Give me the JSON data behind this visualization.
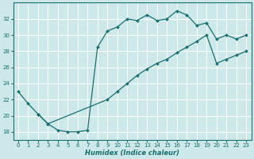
{
  "xlabel": "Humidex (Indice chaleur)",
  "bg_color": "#cce8e8",
  "grid_color": "#ffffff",
  "line_color": "#1a6e6e",
  "xlim": [
    -0.5,
    23.5
  ],
  "ylim": [
    17.0,
    34.0
  ],
  "xticks": [
    0,
    1,
    2,
    3,
    4,
    5,
    6,
    7,
    8,
    9,
    10,
    11,
    12,
    13,
    14,
    15,
    16,
    17,
    18,
    19,
    20,
    21,
    22,
    23
  ],
  "yticks": [
    18,
    20,
    22,
    24,
    26,
    28,
    30,
    32
  ],
  "line1_x": [
    0,
    1,
    2,
    3,
    4,
    5,
    6,
    7,
    8,
    9,
    10,
    11,
    12,
    13,
    14,
    15,
    16,
    17,
    18,
    19,
    20,
    21,
    22,
    23
  ],
  "line1_y": [
    23.0,
    21.5,
    20.2,
    19.0,
    18.2,
    18.0,
    18.0,
    18.2,
    28.5,
    30.5,
    31.0,
    32.0,
    31.8,
    32.5,
    31.8,
    32.0,
    33.0,
    32.5,
    31.2,
    31.5,
    29.5,
    30.0,
    29.5,
    30.0
  ],
  "line2_x": [
    2,
    3,
    9,
    10,
    11,
    12,
    13,
    14,
    15,
    16,
    17,
    18,
    19,
    20,
    21,
    22,
    23
  ],
  "line2_y": [
    20.2,
    19.0,
    22.0,
    23.0,
    24.0,
    25.0,
    25.8,
    26.5,
    27.0,
    27.8,
    28.5,
    29.2,
    30.0,
    26.5,
    27.0,
    27.5,
    28.0
  ]
}
